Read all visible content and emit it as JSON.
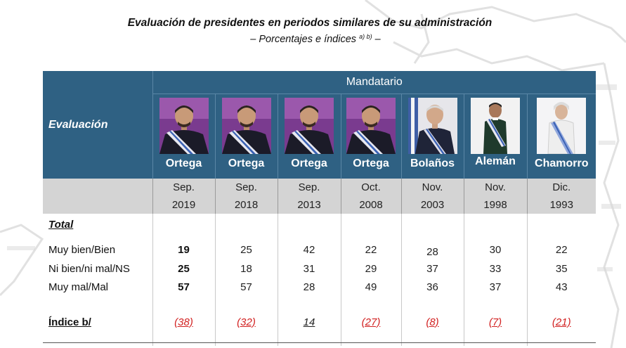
{
  "header": {
    "title": "Evaluación de presidentes en periodos similares de su administración",
    "subtitle": "– Porcentajes e índices",
    "subtitle_sup": "a) b)",
    "subtitle_end": "–"
  },
  "table": {
    "mandatario_label": "Mandatario",
    "evaluacion_label": "Evaluación",
    "presidents": [
      {
        "name": "Ortega",
        "month": "Sep.",
        "year": "2019",
        "photo": "ortega-portrait"
      },
      {
        "name": "Ortega",
        "month": "Sep.",
        "year": "2018",
        "photo": "ortega-portrait"
      },
      {
        "name": "Ortega",
        "month": "Sep.",
        "year": "2013",
        "photo": "ortega-portrait"
      },
      {
        "name": "Ortega",
        "month": "Oct.",
        "year": "2008",
        "photo": "ortega-portrait"
      },
      {
        "name": "Bolaños",
        "month": "Nov.",
        "year": "2003",
        "photo": "bolanos-portrait"
      },
      {
        "name": "Alemán",
        "month": "Nov.",
        "year": "1998",
        "photo": "aleman-portrait"
      },
      {
        "name": "Chamorro",
        "month": "Dic.",
        "year": "1993",
        "photo": "chamorro-portrait"
      }
    ],
    "total_label": "Total",
    "rows": [
      {
        "label": "Muy bien/Bien",
        "values": [
          "19",
          "25",
          "42",
          "22",
          "28",
          "30",
          "22"
        ]
      },
      {
        "label": "Ni bien/ni mal/NS",
        "values": [
          "25",
          "18",
          "31",
          "29",
          "37",
          "33",
          "35"
        ]
      },
      {
        "label": "Muy mal/Mal",
        "values": [
          "57",
          "57",
          "28",
          "49",
          "36",
          "37",
          "43"
        ]
      }
    ],
    "index_label": "Índice b/",
    "index_values": [
      "(38)",
      "(32)",
      "14",
      "(27)",
      "(8)",
      "(7)",
      "(21)"
    ]
  },
  "colors": {
    "header_blue": "#2f6183",
    "grey_band": "#d4d4d4",
    "negative_red": "#d22222"
  }
}
